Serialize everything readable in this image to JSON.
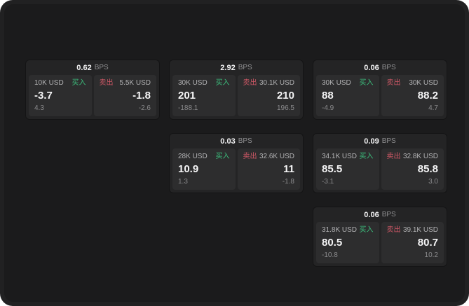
{
  "labels": {
    "bps_unit": "BPS",
    "buy": "买入",
    "sell": "卖出"
  },
  "colors": {
    "page_bg": "#212122",
    "surface_bg": "#1b1b1c",
    "card_bg": "#242425",
    "panel_bg": "#2d2d2e",
    "buy_green": "#3cbd7c",
    "sell_red": "#cf5866",
    "value_white": "#f5f5f6",
    "size_gray": "#b2b2b4",
    "delta_gray": "#8a8a8c"
  },
  "cards": [
    {
      "row": 1,
      "col": 1,
      "bps": "0.62",
      "buy": {
        "size": "10K USD",
        "value": "-3.7",
        "delta": "4.3"
      },
      "sell": {
        "size": "5.5K USD",
        "value": "-1.8",
        "delta": "-2.6"
      }
    },
    {
      "row": 1,
      "col": 2,
      "bps": "2.92",
      "buy": {
        "size": "30K USD",
        "value": "201",
        "delta": "-188.1"
      },
      "sell": {
        "size": "30.1K USD",
        "value": "210",
        "delta": "196.5"
      }
    },
    {
      "row": 1,
      "col": 3,
      "bps": "0.06",
      "buy": {
        "size": "30K USD",
        "value": "88",
        "delta": "-4.9"
      },
      "sell": {
        "size": "30K USD",
        "value": "88.2",
        "delta": "4.7"
      }
    },
    {
      "row": 2,
      "col": 2,
      "bps": "0.03",
      "buy": {
        "size": "28K USD",
        "value": "10.9",
        "delta": "1.3"
      },
      "sell": {
        "size": "32.6K USD",
        "value": "11",
        "delta": "-1.8"
      }
    },
    {
      "row": 2,
      "col": 3,
      "bps": "0.09",
      "buy": {
        "size": "34.1K USD",
        "value": "85.5",
        "delta": "-3.1"
      },
      "sell": {
        "size": "32.8K USD",
        "value": "85.8",
        "delta": "3.0"
      }
    },
    {
      "row": 3,
      "col": 3,
      "bps": "0.06",
      "buy": {
        "size": "31.8K USD",
        "value": "80.5",
        "delta": "-10.8"
      },
      "sell": {
        "size": "39.1K USD",
        "value": "80.7",
        "delta": "10.2"
      }
    }
  ]
}
